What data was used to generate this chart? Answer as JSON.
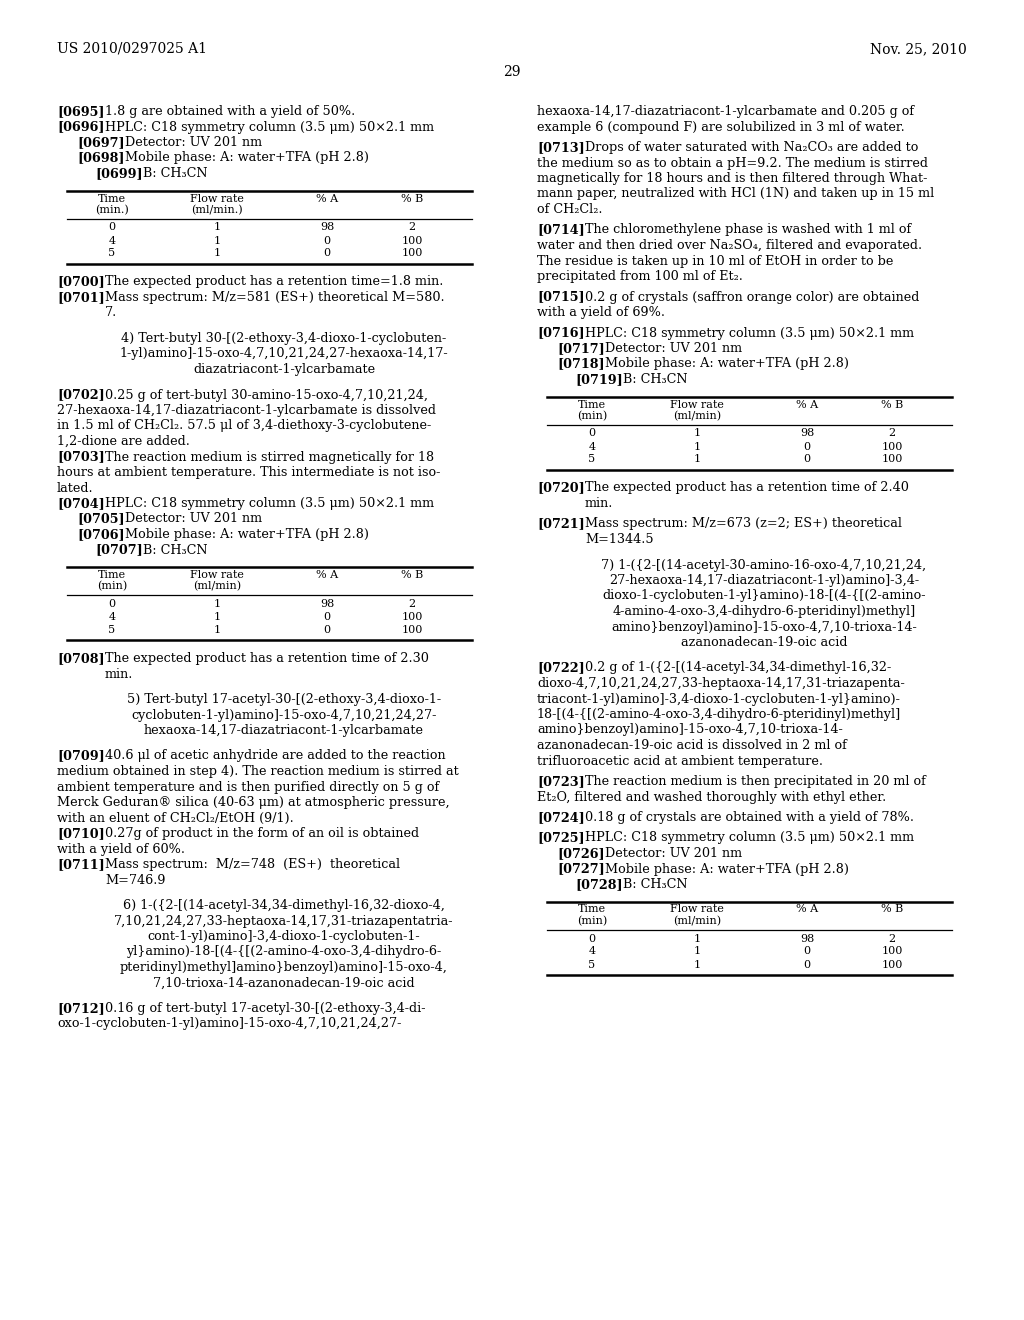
{
  "header_left": "US 2010/0297025 A1",
  "header_right": "Nov. 25, 2010",
  "page_number": "29",
  "background_color": "#ffffff",
  "text_color": "#000000"
}
